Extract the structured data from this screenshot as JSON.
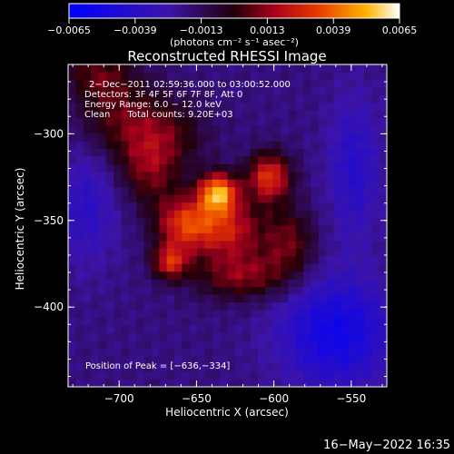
{
  "chart_data": {
    "type": "heatmap",
    "title": "Reconstructed RHESSI Image",
    "xlabel": "Heliocentric X (arcsec)",
    "ylabel": "Heliocentric Y (arcsec)",
    "xlim": [
      -733,
      -527
    ],
    "ylim": [
      -446,
      -260
    ],
    "x_ticks": [
      -700,
      -650,
      -600,
      -550
    ],
    "x_tick_labels": [
      "−700",
      "−650",
      "−600",
      "−550"
    ],
    "y_ticks": [
      -300,
      -350,
      -400
    ],
    "y_tick_labels": [
      "−300",
      "−350",
      "−400"
    ],
    "colorbar": {
      "min": -0.0065,
      "max": 0.0065,
      "ticks": [
        -0.0065,
        -0.0039,
        -0.0013,
        0.0013,
        0.0039,
        0.0065
      ],
      "tick_labels": [
        "−0.0065",
        "−0.0039",
        "−0.0013",
        "0.0013",
        "0.0039",
        "0.0065"
      ],
      "unit_label": "(photons cm⁻² s⁻¹ asec⁻²)"
    },
    "annotations": [
      "2−Dec−2011 02:59:36.000 to 03:00:52.000",
      "Detectors: 3F 4F 5F 6F 7F 8F, Att 0",
      "Energy Range: 6.0 − 12.0 keV",
      "Clean      Total counts: 9.20E+03"
    ],
    "peak_label": "Position of Peak = [−636,−334]",
    "peak": [
      -636,
      -334
    ],
    "sources": [
      {
        "x": -636,
        "y": -334,
        "amp": 0.0065,
        "sx": 9,
        "sy": 8
      },
      {
        "x": -603,
        "y": -325,
        "amp": 0.0048,
        "sx": 10,
        "sy": 10
      },
      {
        "x": -658,
        "y": -352,
        "amp": 0.0044,
        "sx": 13,
        "sy": 11
      },
      {
        "x": -667,
        "y": -374,
        "amp": 0.0042,
        "sx": 8,
        "sy": 7
      },
      {
        "x": -630,
        "y": -355,
        "amp": 0.004,
        "sx": 16,
        "sy": 12
      },
      {
        "x": -620,
        "y": -382,
        "amp": 0.003,
        "sx": 22,
        "sy": 10
      },
      {
        "x": -680,
        "y": -320,
        "amp": 0.0026,
        "sx": 14,
        "sy": 16
      },
      {
        "x": -700,
        "y": -290,
        "amp": 0.0024,
        "sx": 20,
        "sy": 18
      },
      {
        "x": -715,
        "y": -265,
        "amp": 0.002,
        "sx": 15,
        "sy": 10
      },
      {
        "x": -590,
        "y": -362,
        "amp": 0.0026,
        "sx": 12,
        "sy": 14
      },
      {
        "x": -665,
        "y": -300,
        "amp": 0.0016,
        "sx": 18,
        "sy": 14
      },
      {
        "x": -560,
        "y": -415,
        "amp": -0.0035,
        "sx": 25,
        "sy": 22
      },
      {
        "x": -720,
        "y": -340,
        "amp": -0.0018,
        "sx": 14,
        "sy": 25
      },
      {
        "x": -548,
        "y": -320,
        "amp": -0.002,
        "sx": 12,
        "sy": 30
      }
    ]
  },
  "footer": {
    "timestamp": "16−May−2022 16:35"
  }
}
